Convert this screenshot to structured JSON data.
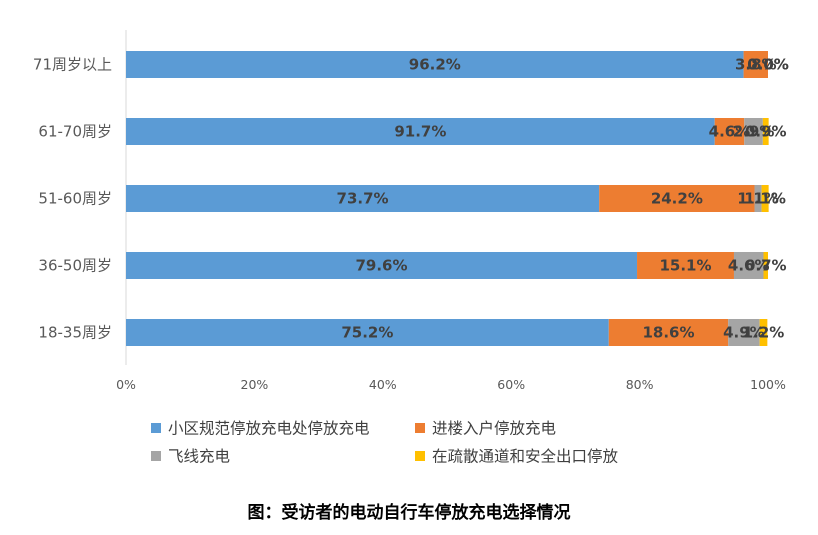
{
  "caption": "图：受访者的电动自行车停放充电选择情况",
  "chart_data": {
    "type": "bar",
    "orientation": "horizontal",
    "stacked": "percent",
    "categories": [
      "71周岁以上",
      "61-70周岁",
      "51-60周岁",
      "36-50周岁",
      "18-35周岁"
    ],
    "series": [
      {
        "name": "小区规范停放充电处停放充电",
        "color": "#5B9BD5",
        "values": [
          96.2,
          91.7,
          73.7,
          79.6,
          75.2
        ]
      },
      {
        "name": "进楼入户停放充电",
        "color": "#ED7D31",
        "values": [
          3.8,
          4.6,
          24.2,
          15.1,
          18.6
        ]
      },
      {
        "name": "飞线充电",
        "color": "#A5A5A5",
        "values": [
          0.0,
          2.9,
          1.1,
          4.6,
          4.9
        ]
      },
      {
        "name": "在疏散通道和安全出口停放",
        "color": "#FFC000",
        "values": [
          0.0,
          0.9,
          1.1,
          0.7,
          1.2
        ]
      }
    ],
    "data_labels": [
      [
        "96.2%",
        "3.8%",
        "0.0%",
        "0.0%"
      ],
      [
        "91.7%",
        "4.6%",
        "2.9%",
        "0.9%"
      ],
      [
        "73.7%",
        "24.2%",
        "1.1%",
        "1.1%"
      ],
      [
        "79.6%",
        "15.1%",
        "4.6%",
        "0.7%"
      ],
      [
        "75.2%",
        "18.6%",
        "4.9%",
        "1.2%"
      ]
    ],
    "x_ticks": [
      "0%",
      "20%",
      "40%",
      "60%",
      "80%",
      "100%"
    ],
    "xlim": [
      0,
      100
    ],
    "grid": false,
    "legend_position": "bottom"
  }
}
